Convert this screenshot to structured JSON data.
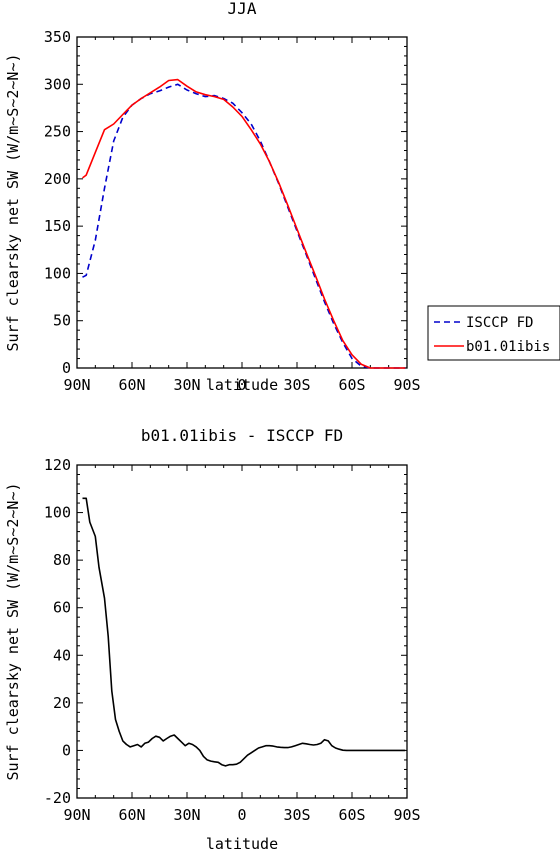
{
  "chart_data": [
    {
      "type": "line",
      "title": "JJA",
      "xlabel": "latitude",
      "ylabel": "Surf clearsky net SW (W/m~S~2~N~)",
      "x_ticks": [
        {
          "value": -90,
          "label": "90N"
        },
        {
          "value": -60,
          "label": "60N"
        },
        {
          "value": -30,
          "label": "30N"
        },
        {
          "value": 0,
          "label": "0"
        },
        {
          "value": 30,
          "label": "30S"
        },
        {
          "value": 60,
          "label": "60S"
        },
        {
          "value": 90,
          "label": "90S"
        }
      ],
      "xlim": [
        -90,
        90
      ],
      "y_ticks": [
        0,
        50,
        100,
        150,
        200,
        250,
        300,
        350
      ],
      "ylim": [
        0,
        350
      ],
      "legend": {
        "placement": "right"
      },
      "series": [
        {
          "name": "ISCCP FD",
          "color": "#0000cc",
          "dash": "dashed",
          "x": [
            -87,
            -85,
            -80,
            -75,
            -70,
            -65,
            -60,
            -55,
            -50,
            -45,
            -40,
            -35,
            -30,
            -25,
            -20,
            -15,
            -10,
            -5,
            0,
            5,
            10,
            15,
            20,
            25,
            30,
            35,
            40,
            45,
            50,
            55,
            60,
            65,
            70,
            75,
            80,
            85,
            89
          ],
          "values": [
            96,
            98,
            135,
            190,
            240,
            265,
            278,
            285,
            290,
            293,
            297,
            300,
            294,
            290,
            287,
            288,
            285,
            280,
            270,
            258,
            240,
            218,
            195,
            170,
            145,
            120,
            95,
            70,
            47,
            27,
            10,
            2,
            0,
            0,
            0,
            0,
            0
          ]
        },
        {
          "name": "b01.01ibis",
          "color": "#ff0000",
          "dash": "solid",
          "x": [
            -87,
            -85,
            -80,
            -75,
            -70,
            -65,
            -60,
            -55,
            -50,
            -45,
            -40,
            -35,
            -30,
            -25,
            -20,
            -15,
            -10,
            -5,
            0,
            5,
            10,
            15,
            20,
            25,
            30,
            35,
            40,
            45,
            50,
            55,
            60,
            65,
            70,
            75,
            80,
            85,
            89
          ],
          "values": [
            201,
            204,
            228,
            252,
            258,
            268,
            278,
            285,
            291,
            297,
            304,
            305,
            298,
            292,
            289,
            287,
            284,
            276,
            266,
            252,
            237,
            218,
            196,
            172,
            147,
            122,
            98,
            73,
            50,
            29,
            14,
            4,
            0,
            0,
            0,
            0,
            0
          ]
        }
      ]
    },
    {
      "type": "line",
      "title": "b01.01ibis - ISCCP FD",
      "xlabel": "latitude",
      "ylabel": "Surf clearsky net SW (W/m~S~2~N~)",
      "x_ticks": [
        {
          "value": -90,
          "label": "90N"
        },
        {
          "value": -60,
          "label": "60N"
        },
        {
          "value": -30,
          "label": "30N"
        },
        {
          "value": 0,
          "label": "0"
        },
        {
          "value": 30,
          "label": "30S"
        },
        {
          "value": 60,
          "label": "60S"
        },
        {
          "value": 90,
          "label": "90S"
        }
      ],
      "xlim": [
        -90,
        90
      ],
      "y_ticks": [
        -20,
        0,
        20,
        40,
        60,
        80,
        100,
        120
      ],
      "ylim": [
        -20,
        120
      ],
      "series": [
        {
          "color": "#000000",
          "x": [
            -87,
            -85,
            -83,
            -80,
            -78,
            -75,
            -73,
            -71,
            -69,
            -67,
            -65,
            -63,
            -61,
            -59,
            -57,
            -55,
            -53,
            -51,
            -49,
            -47,
            -45,
            -43,
            -41,
            -39,
            -37,
            -35,
            -33,
            -31,
            -29,
            -27,
            -25,
            -23,
            -21,
            -19,
            -17,
            -15,
            -13,
            -11,
            -9,
            -7,
            -5,
            -3,
            -1,
            1,
            3,
            5,
            7,
            9,
            11,
            13,
            15,
            17,
            19,
            21,
            23,
            25,
            27,
            29,
            31,
            33,
            35,
            37,
            39,
            41,
            43,
            45,
            47,
            49,
            51,
            53,
            55,
            57,
            59,
            61,
            63,
            65,
            67,
            69,
            71,
            73,
            75,
            77,
            79,
            81,
            83,
            85,
            87,
            89
          ],
          "values": [
            106,
            106,
            96,
            90,
            77,
            64,
            48,
            25,
            13,
            8,
            4,
            2.5,
            1.5,
            2,
            2.5,
            1.5,
            3,
            3.5,
            5,
            6,
            5.5,
            4,
            5,
            6,
            6.5,
            5,
            3.5,
            2,
            3,
            2.5,
            1.5,
            0,
            -2.5,
            -4,
            -4.5,
            -4.8,
            -5,
            -6,
            -6.5,
            -6,
            -6,
            -5.8,
            -5,
            -3.5,
            -2,
            -1,
            0,
            1,
            1.5,
            2,
            2,
            1.8,
            1.5,
            1.3,
            1.2,
            1.2,
            1.5,
            2,
            2.5,
            3,
            2.8,
            2.5,
            2.3,
            2.5,
            3,
            4.5,
            4,
            2,
            1,
            0.5,
            0.1,
            0,
            0,
            0,
            0,
            0,
            0,
            0,
            0,
            0,
            0,
            0,
            0,
            0,
            0,
            0,
            0,
            0
          ]
        }
      ]
    }
  ]
}
